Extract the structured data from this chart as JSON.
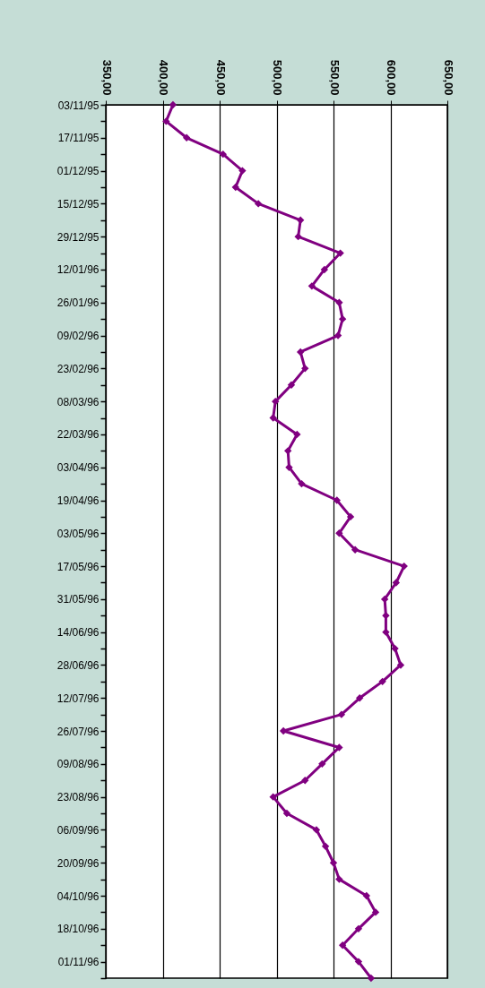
{
  "chart_data": {
    "type": "line",
    "orientation": "horizontal",
    "categories": [
      "03/11/95",
      null,
      "17/11/95",
      null,
      "01/12/95",
      null,
      "15/12/95",
      null,
      "29/12/95",
      null,
      "12/01/96",
      null,
      "26/01/96",
      null,
      "09/02/96",
      null,
      "23/02/96",
      null,
      "08/03/96",
      null,
      "22/03/96",
      null,
      "03/04/96",
      null,
      "19/04/96",
      null,
      "03/05/96",
      null,
      "17/05/96",
      null,
      "31/05/96",
      null,
      "14/06/96",
      null,
      "28/06/96",
      null,
      "12/07/96",
      null,
      "26/07/96",
      null,
      "09/08/96",
      null,
      "23/08/96",
      null,
      "06/09/96",
      null,
      "20/09/96",
      null,
      "04/10/96",
      null,
      "18/10/96",
      null,
      "01/11/96",
      null
    ],
    "series": [
      {
        "color": "#800080",
        "values": [
          409,
          403,
          421,
          453,
          470,
          464,
          484,
          521,
          519,
          556,
          542,
          531,
          555,
          558,
          554,
          521,
          525,
          513,
          499,
          497,
          518,
          510,
          511,
          522,
          553,
          565,
          555,
          569,
          612,
          605,
          595,
          596,
          596,
          604,
          609,
          593,
          573,
          557,
          506,
          555,
          540,
          525,
          497,
          509,
          535,
          543,
          550,
          555,
          579,
          587,
          572,
          558,
          572,
          583
        ]
      }
    ],
    "xlim": [
      350,
      650
    ],
    "xticks": [
      {
        "value": 350,
        "label": "350,00"
      },
      {
        "value": 400,
        "label": "400,00"
      },
      {
        "value": 450,
        "label": "450,00"
      },
      {
        "value": 500,
        "label": "500,00"
      },
      {
        "value": 550,
        "label": "550,00"
      },
      {
        "value": 600,
        "label": "600,00"
      },
      {
        "value": 650,
        "label": "650,00"
      }
    ],
    "grid": "x",
    "marker": "diamond",
    "line_style": "solid",
    "legend": false
  }
}
